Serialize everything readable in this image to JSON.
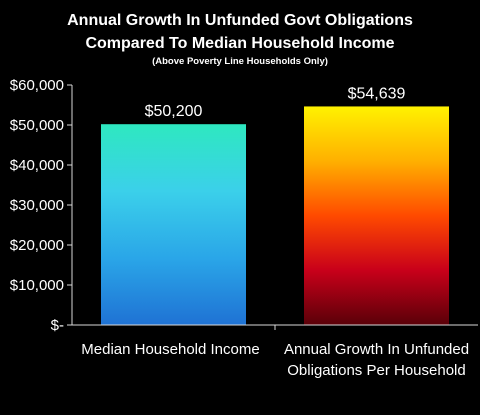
{
  "chart_data": {
    "type": "bar",
    "title_lines": [
      "Annual Growth In Unfunded Govt Obligations",
      "Compared To Median Household Income"
    ],
    "subtitle": "(Above Poverty Line Households Only)",
    "categories": [
      [
        "Median Household Income"
      ],
      [
        "Annual Growth In Unfunded",
        "Obligations Per Household"
      ]
    ],
    "values": [
      50200,
      54639
    ],
    "data_labels": [
      "$50,200",
      "$54,639"
    ],
    "ylim": [
      0,
      60000
    ],
    "y_ticks": [
      0,
      10000,
      20000,
      30000,
      40000,
      50000,
      60000
    ],
    "y_tick_labels": [
      "$-",
      "$10,000",
      "$20,000",
      "$30,000",
      "$40,000",
      "$50,000",
      "$60,000"
    ],
    "grid": false,
    "legend": "none",
    "bar_gradients": [
      [
        "#2ee8c0",
        "#3bd0ea",
        "#2aa6e8",
        "#1f72d4"
      ],
      [
        "#fff200",
        "#ffb000",
        "#ff4a00",
        "#c8001a",
        "#5a0008"
      ]
    ],
    "background": "#000000"
  }
}
